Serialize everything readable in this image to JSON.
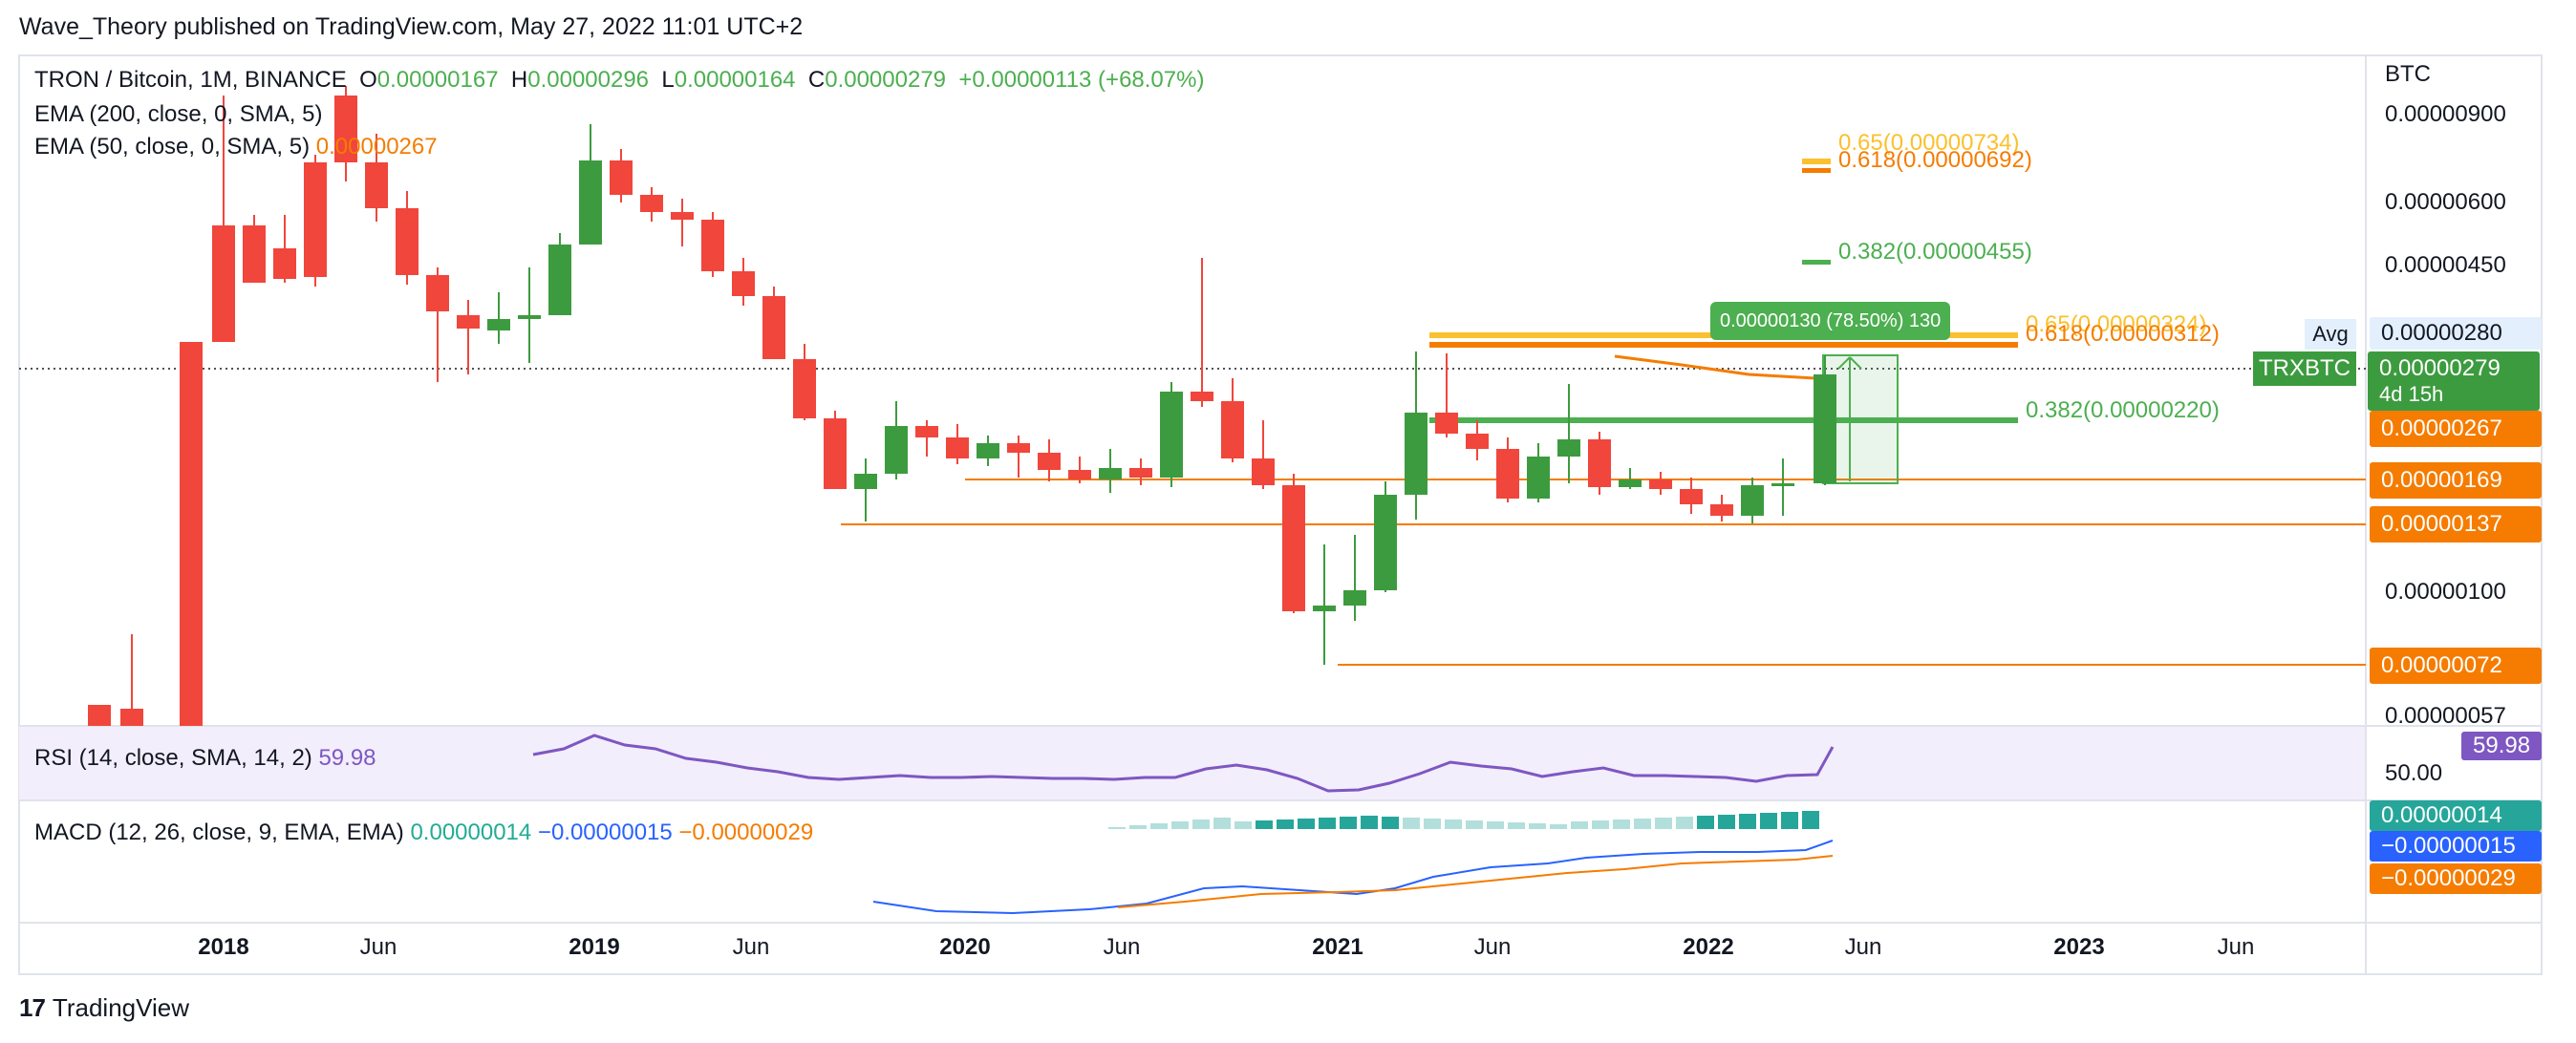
{
  "header": {
    "publisher_line": "Wave_Theory published on TradingView.com, May 27, 2022 11:01 UTC+2"
  },
  "symbol": {
    "name": "TRON / Bitcoin, 1M, BINANCE",
    "open_label": "O",
    "open": "0.00000167",
    "high_label": "H",
    "high": "0.00000296",
    "low_label": "L",
    "low": "0.00000164",
    "close_label": "C",
    "close": "0.00000279",
    "change": "+0.00000113 (+68.07%)"
  },
  "indicators": {
    "ema200": {
      "label": "EMA (200, close, 0, SMA, 5)"
    },
    "ema50": {
      "label": "EMA (50, close, 0, SMA, 5)",
      "value": "0.00000267"
    },
    "rsi": {
      "label": "RSI (14, close, SMA, 14, 2)",
      "value": "59.98"
    },
    "macd": {
      "label": "MACD (12, 26, close, 9, EMA, EMA)",
      "hist": "0.00000014",
      "macd": "−0.00000015",
      "signal": "−0.00000029"
    }
  },
  "price_axis": {
    "currency": "BTC",
    "ticks": [
      "0.00000900",
      "0.00000600",
      "0.00000450",
      "0.00000100",
      "0.00000057"
    ],
    "rsi_tick": "50.00",
    "avg_label": "Avg",
    "avg_value": "0.00000280",
    "symbol_tag": "TRXBTC",
    "last_price": "0.00000279",
    "countdown": "4d 15h",
    "ema50_tag": "0.00000267",
    "level_169": "0.00000169",
    "level_137": "0.00000137",
    "level_72": "0.00000072",
    "rsi_tag": "59.98",
    "macd_hist_tag": "0.00000014",
    "macd_tag": "−0.00000015",
    "signal_tag": "−0.00000029"
  },
  "fib_levels": {
    "upper_065": "0.65(0.00000734)",
    "upper_0618": "0.618(0.00000692)",
    "upper_0382": "0.382(0.00000455)",
    "lower_065": "0.65(0.00000324)",
    "lower_0618": "0.618(0.00000312)",
    "lower_0382": "0.382(0.00000220)"
  },
  "measure_tooltip": "0.00000130 (78.50%) 130",
  "time_axis": [
    "2018",
    "Jun",
    "2019",
    "Jun",
    "2020",
    "Jun",
    "2021",
    "Jun",
    "2022",
    "Jun",
    "2023",
    "Jun"
  ],
  "footer": {
    "brand": "TradingView"
  },
  "colors": {
    "up": "#3d9b3f",
    "down": "#f0463c",
    "ema50": "#f57c00",
    "fib_gold": "#fbc02d",
    "rsi": "#7e57c2",
    "macd": "#2962ff",
    "hist_up": "#26a69a"
  }
}
